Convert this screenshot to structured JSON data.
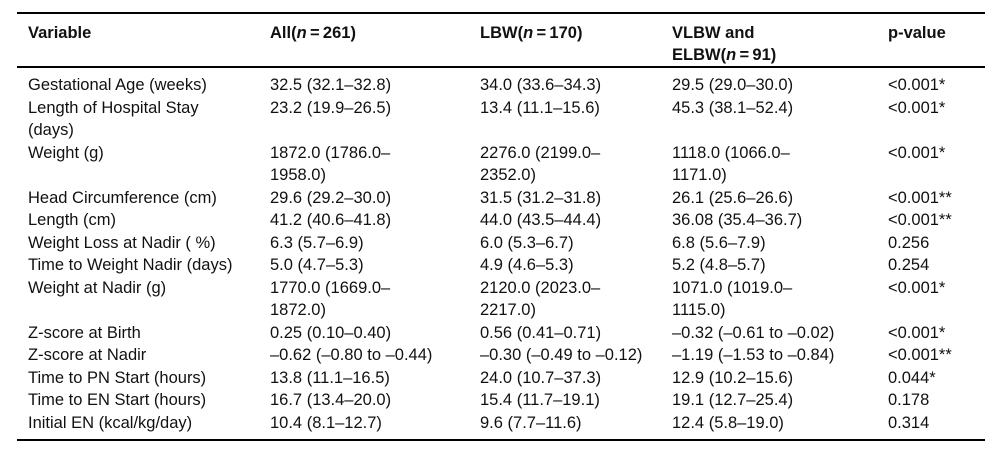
{
  "page": {
    "background": "#ffffff",
    "text_color": "#111111",
    "rule_color": "#000000"
  },
  "table": {
    "header": {
      "variable": "Variable",
      "all": {
        "pre": "All(",
        "n": "n",
        "post": " = 261)"
      },
      "lbw": {
        "pre": "LBW(",
        "n": "n",
        "post": " = 170)"
      },
      "vlbw": {
        "pre": "VLBW and\nELBW(",
        "n": "n",
        "post": " = 91)"
      },
      "p": "p-value"
    },
    "rows": [
      {
        "variable": "Gestational Age (weeks)",
        "all": "32.5 (32.1–32.8)",
        "lbw": "34.0 (33.6–34.3)",
        "vlbw": "29.5 (29.0–30.0)",
        "p": "<0.001*"
      },
      {
        "variable": "Length of Hospital Stay\n(days)",
        "all": "23.2 (19.9–26.5)",
        "lbw": "13.4 (11.1–15.6)",
        "vlbw": "45.3 (38.1–52.4)",
        "p": "<0.001*"
      },
      {
        "variable": "Weight (g)",
        "all": "1872.0 (1786.0–\n1958.0)",
        "lbw": "2276.0 (2199.0–\n2352.0)",
        "vlbw": "1118.0 (1066.0–\n1171.0)",
        "p": "<0.001*"
      },
      {
        "variable": "Head Circumference (cm)",
        "all": "29.6 (29.2–30.0)",
        "lbw": "31.5 (31.2–31.8)",
        "vlbw": "26.1 (25.6–26.6)",
        "p": "<0.001**"
      },
      {
        "variable": "Length (cm)",
        "all": "41.2 (40.6–41.8)",
        "lbw": "44.0 (43.5–44.4)",
        "vlbw": "36.08 (35.4–36.7)",
        "p": "<0.001**"
      },
      {
        "variable": "Weight Loss at Nadir ( %)",
        "all": "6.3 (5.7–6.9)",
        "lbw": "6.0 (5.3–6.7)",
        "vlbw": "6.8 (5.6–7.9)",
        "p": "0.256"
      },
      {
        "variable": "Time to Weight Nadir (days)",
        "all": "5.0 (4.7–5.3)",
        "lbw": "4.9 (4.6–5.3)",
        "vlbw": "5.2 (4.8–5.7)",
        "p": "0.254"
      },
      {
        "variable": "Weight at Nadir (g)",
        "all": "1770.0 (1669.0–\n1872.0)",
        "lbw": "2120.0 (2023.0–\n2217.0)",
        "vlbw": "1071.0 (1019.0–\n1115.0)",
        "p": "<0.001*"
      },
      {
        "variable": "Z-score at Birth",
        "all": "0.25 (0.10–0.40)",
        "lbw": "0.56 (0.41–0.71)",
        "vlbw": "–0.32 (–0.61 to –0.02)",
        "p": "<0.001*"
      },
      {
        "variable": "Z-score at Nadir",
        "all": "–0.62 (–0.80 to –0.44)",
        "lbw": "–0.30 (–0.49 to –0.12)",
        "vlbw": "–1.19 (–1.53 to –0.84)",
        "p": "<0.001**"
      },
      {
        "variable": "Time to PN Start (hours)",
        "all": "13.8 (11.1–16.5)",
        "lbw": "24.0 (10.7–37.3)",
        "vlbw": "12.9 (10.2–15.6)",
        "p": "0.044*"
      },
      {
        "variable": "Time to EN Start (hours)",
        "all": "16.7 (13.4–20.0)",
        "lbw": "15.4 (11.7–19.1)",
        "vlbw": "19.1 (12.7–25.4)",
        "p": "0.178"
      },
      {
        "variable": "Initial EN (kcal/kg/day)",
        "all": "10.4 (8.1–12.7)",
        "lbw": "9.6 (7.7–11.6)",
        "vlbw": "12.4 (5.8–19.0)",
        "p": "0.314"
      }
    ]
  }
}
